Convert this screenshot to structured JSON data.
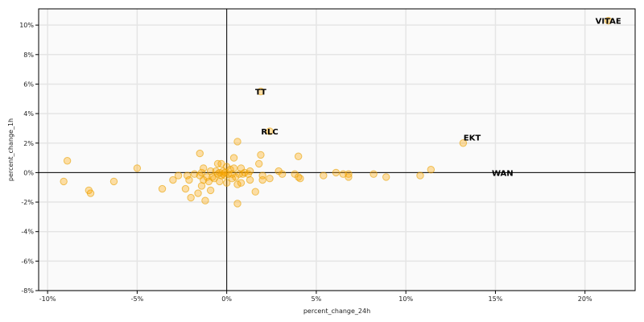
{
  "chart_data": {
    "type": "scatter",
    "title": "",
    "xlabel": "percent_change_24h",
    "ylabel": "percent_change_1h",
    "xlim": [
      -10.5,
      22.8
    ],
    "ylim": [
      -8.0,
      11.1
    ],
    "xticks": [
      {
        "value": -10,
        "label": "-10%"
      },
      {
        "value": -5,
        "label": "-5%"
      },
      {
        "value": 0,
        "label": "0%"
      },
      {
        "value": 5,
        "label": "5%"
      },
      {
        "value": 10,
        "label": "10%"
      },
      {
        "value": 15,
        "label": "15%"
      },
      {
        "value": 20,
        "label": "20%"
      }
    ],
    "yticks": [
      {
        "value": -8,
        "label": "-8%"
      },
      {
        "value": -6,
        "label": "-6%"
      },
      {
        "value": -4,
        "label": "-4%"
      },
      {
        "value": -2,
        "label": "-2%"
      },
      {
        "value": 0,
        "label": "0%"
      },
      {
        "value": 2,
        "label": "2%"
      },
      {
        "value": 4,
        "label": "4%"
      },
      {
        "value": 6,
        "label": "6%"
      },
      {
        "value": 8,
        "label": "8%"
      },
      {
        "value": 10,
        "label": "10%"
      }
    ],
    "grid": true,
    "colors": {
      "point_fill": "#ffa500",
      "point_stroke": "#e8a000",
      "grid": "#e5e5e5",
      "plot_bg": "#fafafa",
      "reference_line": "#000000"
    },
    "reference_lines": {
      "x": 0,
      "y": 0
    },
    "points": [
      {
        "x": -8.9,
        "y": 0.8
      },
      {
        "x": -9.1,
        "y": -0.6
      },
      {
        "x": -7.7,
        "y": -1.2
      },
      {
        "x": -7.6,
        "y": -1.4
      },
      {
        "x": -6.3,
        "y": -0.6
      },
      {
        "x": -5.0,
        "y": 0.3
      },
      {
        "x": -3.6,
        "y": -1.1
      },
      {
        "x": -3.0,
        "y": -0.5
      },
      {
        "x": -2.7,
        "y": -0.2
      },
      {
        "x": -2.3,
        "y": -1.1
      },
      {
        "x": -2.2,
        "y": -0.2
      },
      {
        "x": -2.1,
        "y": -0.5
      },
      {
        "x": -2.0,
        "y": -1.7
      },
      {
        "x": -1.8,
        "y": -0.1
      },
      {
        "x": -1.6,
        "y": -1.4
      },
      {
        "x": -1.5,
        "y": -0.2
      },
      {
        "x": -1.5,
        "y": 1.3
      },
      {
        "x": -1.4,
        "y": 0.0
      },
      {
        "x": -1.3,
        "y": 0.3
      },
      {
        "x": -1.3,
        "y": -0.5
      },
      {
        "x": -1.4,
        "y": -0.9
      },
      {
        "x": -1.2,
        "y": -1.9
      },
      {
        "x": -1.1,
        "y": -0.3
      },
      {
        "x": -1.0,
        "y": -0.6
      },
      {
        "x": -0.9,
        "y": 0.1
      },
      {
        "x": -0.9,
        "y": -1.2
      },
      {
        "x": -0.8,
        "y": -0.3
      },
      {
        "x": -0.7,
        "y": -0.4
      },
      {
        "x": -0.6,
        "y": 0.1
      },
      {
        "x": -0.5,
        "y": 0.6
      },
      {
        "x": -0.5,
        "y": -0.1
      },
      {
        "x": -0.4,
        "y": -0.6
      },
      {
        "x": -0.4,
        "y": 0.0
      },
      {
        "x": -0.3,
        "y": 0.6
      },
      {
        "x": -0.3,
        "y": -0.2
      },
      {
        "x": -0.2,
        "y": 0.1
      },
      {
        "x": -0.2,
        "y": -0.1
      },
      {
        "x": -0.1,
        "y": -0.2
      },
      {
        "x": -0.1,
        "y": 0.0
      },
      {
        "x": 0.0,
        "y": 0.4
      },
      {
        "x": 0.0,
        "y": -0.7
      },
      {
        "x": 0.1,
        "y": -0.1
      },
      {
        "x": 0.2,
        "y": 0.2
      },
      {
        "x": 0.3,
        "y": -0.4
      },
      {
        "x": 0.3,
        "y": -0.1
      },
      {
        "x": 0.4,
        "y": 1.0
      },
      {
        "x": 0.4,
        "y": 0.3
      },
      {
        "x": 0.5,
        "y": -0.3
      },
      {
        "x": 0.6,
        "y": 2.1
      },
      {
        "x": 0.6,
        "y": -0.8
      },
      {
        "x": 0.6,
        "y": -2.1
      },
      {
        "x": 0.7,
        "y": -0.1
      },
      {
        "x": 0.8,
        "y": 0.3
      },
      {
        "x": 0.8,
        "y": -0.7
      },
      {
        "x": 0.9,
        "y": -0.1
      },
      {
        "x": 1.0,
        "y": 0.0
      },
      {
        "x": 1.2,
        "y": -0.1
      },
      {
        "x": 1.3,
        "y": 0.1
      },
      {
        "x": 1.3,
        "y": -0.5
      },
      {
        "x": 1.6,
        "y": -1.3
      },
      {
        "x": 1.8,
        "y": 0.6
      },
      {
        "x": 1.9,
        "y": 1.2
      },
      {
        "x": 2.0,
        "y": -0.2
      },
      {
        "x": 2.0,
        "y": -0.5
      },
      {
        "x": 2.4,
        "y": -0.4
      },
      {
        "x": 2.4,
        "y": 2.8
      },
      {
        "x": 2.9,
        "y": 0.1
      },
      {
        "x": 3.1,
        "y": -0.1
      },
      {
        "x": 3.8,
        "y": -0.1
      },
      {
        "x": 4.0,
        "y": -0.3
      },
      {
        "x": 4.0,
        "y": 1.1
      },
      {
        "x": 4.1,
        "y": -0.4
      },
      {
        "x": 5.4,
        "y": -0.2
      },
      {
        "x": 6.1,
        "y": 0.0
      },
      {
        "x": 6.5,
        "y": -0.1
      },
      {
        "x": 6.8,
        "y": -0.1
      },
      {
        "x": 6.8,
        "y": -0.3
      },
      {
        "x": 8.2,
        "y": -0.1
      },
      {
        "x": 8.9,
        "y": -0.3
      },
      {
        "x": 10.8,
        "y": -0.2
      },
      {
        "x": 11.4,
        "y": 0.2
      },
      {
        "x": 13.2,
        "y": 2.0
      },
      {
        "x": 1.9,
        "y": 5.5
      },
      {
        "x": 21.3,
        "y": 10.3
      }
    ],
    "annotations": [
      {
        "text": "VITAE",
        "x": 21.3,
        "y": 10.3
      },
      {
        "text": "TT",
        "x": 1.9,
        "y": 5.5
      },
      {
        "text": "RLC",
        "x": 2.4,
        "y": 2.8
      },
      {
        "text": "EKT",
        "x": 13.7,
        "y": 2.4
      },
      {
        "text": "WAN",
        "x": 15.4,
        "y": 0.0
      }
    ]
  }
}
